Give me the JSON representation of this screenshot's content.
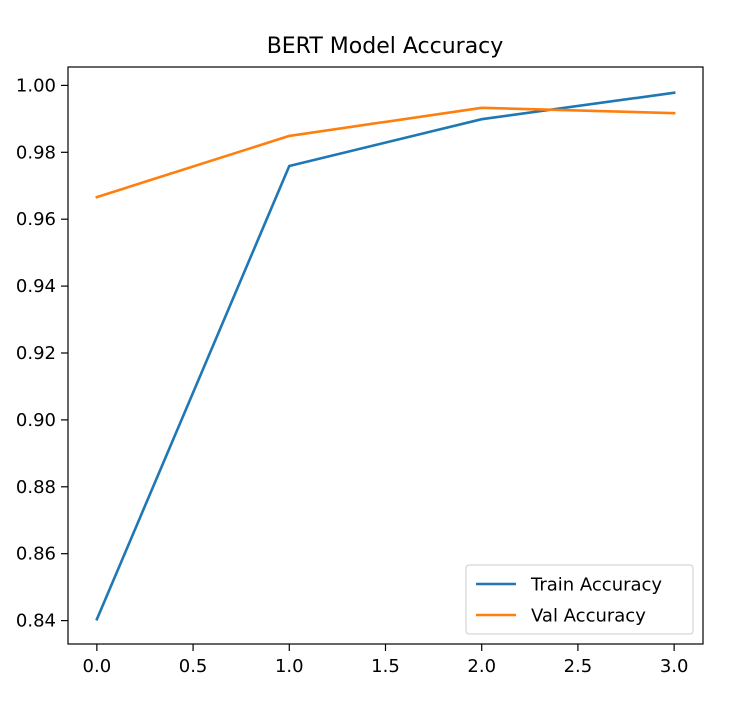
{
  "chart_data": {
    "type": "line",
    "title": "BERT Model Accuracy",
    "xlabel": "",
    "ylabel": "",
    "x": [
      0,
      1,
      2,
      3
    ],
    "xlim": [
      -0.15,
      3.15
    ],
    "ylim": [
      0.833,
      1.0055
    ],
    "xticks": [
      0.0,
      0.5,
      1.0,
      1.5,
      2.0,
      2.5,
      3.0
    ],
    "xtick_labels": [
      "0.0",
      "0.5",
      "1.0",
      "1.5",
      "2.0",
      "2.5",
      "3.0"
    ],
    "yticks": [
      0.84,
      0.86,
      0.88,
      0.9,
      0.92,
      0.94,
      0.96,
      0.98,
      1.0
    ],
    "ytick_labels": [
      "0.84",
      "0.86",
      "0.88",
      "0.90",
      "0.92",
      "0.94",
      "0.96",
      "0.98",
      "1.00"
    ],
    "grid": false,
    "legend_position": "lower-right",
    "series": [
      {
        "name": "Train Accuracy",
        "color": "#1f77b4",
        "values": [
          0.8404,
          0.9759,
          0.9899,
          0.9978
        ]
      },
      {
        "name": "Val Accuracy",
        "color": "#ff7f0e",
        "values": [
          0.9666,
          0.9849,
          0.9933,
          0.9917
        ]
      }
    ]
  }
}
